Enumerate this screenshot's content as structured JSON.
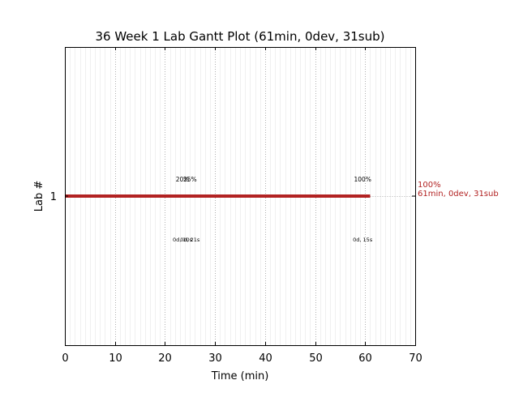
{
  "chart_data": {
    "type": "gantt",
    "title": "36 Week 1 Lab Gantt Plot (61min, 0dev, 31sub)",
    "xlabel": "Time (min)",
    "ylabel": "Lab #",
    "xlim": [
      0,
      70
    ],
    "x_ticks": [
      0,
      10,
      20,
      30,
      40,
      50,
      60,
      70
    ],
    "x_minor_step": 1,
    "grid": true,
    "lanes": [
      {
        "label": "1",
        "bar": {
          "start": 0,
          "end": 61,
          "color": "#b22222"
        },
        "end_label": [
          "100%",
          "61min, 0dev, 31sub"
        ],
        "markers": [
          {
            "x": 23.5,
            "top": "20%",
            "bottom": "0d, 10s"
          },
          {
            "x": 25.0,
            "top": "25%",
            "bottom": "0d, 21s"
          },
          {
            "x": 59.5,
            "top": "100%",
            "bottom": "0d, 15s"
          }
        ]
      }
    ],
    "colors": {
      "bar": "#b22222",
      "end_label": "#b22222",
      "grid": "#b0b0b0"
    }
  }
}
